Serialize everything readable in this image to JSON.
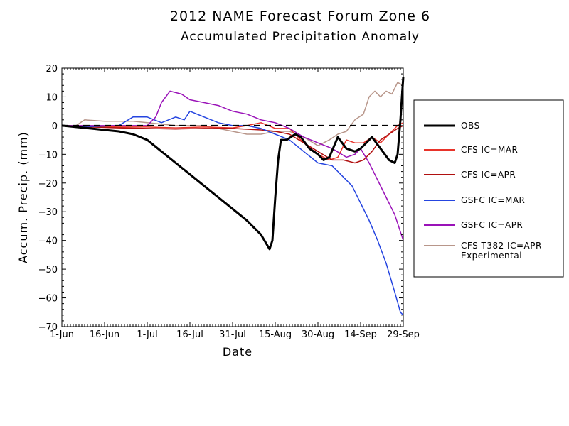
{
  "chart_data": {
    "type": "line",
    "title": "2012 NAME Forecast Forum Zone 6",
    "subtitle": "Accumulated Precipitation Anomaly",
    "xlabel": "Date",
    "ylabel": "Accum. Precip. (mm)",
    "x_domain": [
      "2012-06-01",
      "2012-09-29"
    ],
    "xticks": [
      {
        "date": "2012-06-01",
        "label": "1-Jun"
      },
      {
        "date": "2012-06-16",
        "label": "16-Jun"
      },
      {
        "date": "2012-07-01",
        "label": "1-Jul"
      },
      {
        "date": "2012-07-16",
        "label": "16-Jul"
      },
      {
        "date": "2012-07-31",
        "label": "31-Jul"
      },
      {
        "date": "2012-08-15",
        "label": "15-Aug"
      },
      {
        "date": "2012-08-30",
        "label": "30-Aug"
      },
      {
        "date": "2012-09-14",
        "label": "14-Sep"
      },
      {
        "date": "2012-09-29",
        "label": "29-Sep"
      }
    ],
    "ylim": [
      -70,
      20
    ],
    "yticks": [
      20,
      10,
      0,
      -10,
      -20,
      -30,
      -40,
      -50,
      -60,
      -70
    ],
    "ytick_labels": [
      "20",
      "10",
      "0",
      "−10",
      "−20",
      "−30",
      "−40",
      "−50",
      "−60",
      "−70"
    ],
    "zero_line": "dashed",
    "grid": false,
    "legend_position": "right",
    "series": [
      {
        "name": "OBS",
        "color": "#000000",
        "width": 3,
        "points": [
          [
            "2012-06-01",
            0
          ],
          [
            "2012-06-06",
            -0.5
          ],
          [
            "2012-06-11",
            -1
          ],
          [
            "2012-06-16",
            -1.5
          ],
          [
            "2012-06-21",
            -2
          ],
          [
            "2012-06-26",
            -3
          ],
          [
            "2012-07-01",
            -5
          ],
          [
            "2012-07-06",
            -9
          ],
          [
            "2012-07-11",
            -13
          ],
          [
            "2012-07-16",
            -17
          ],
          [
            "2012-07-21",
            -21
          ],
          [
            "2012-07-26",
            -25
          ],
          [
            "2012-07-31",
            -29
          ],
          [
            "2012-08-05",
            -33
          ],
          [
            "2012-08-10",
            -38
          ],
          [
            "2012-08-13",
            -43
          ],
          [
            "2012-08-14",
            -40
          ],
          [
            "2012-08-15",
            -25
          ],
          [
            "2012-08-16",
            -12
          ],
          [
            "2012-08-17",
            -5
          ],
          [
            "2012-08-19",
            -5
          ],
          [
            "2012-08-22",
            -3
          ],
          [
            "2012-08-24",
            -4
          ],
          [
            "2012-08-27",
            -8
          ],
          [
            "2012-08-30",
            -10
          ],
          [
            "2012-09-01",
            -12
          ],
          [
            "2012-09-03",
            -11
          ],
          [
            "2012-09-06",
            -4
          ],
          [
            "2012-09-09",
            -8
          ],
          [
            "2012-09-12",
            -9
          ],
          [
            "2012-09-14",
            -8
          ],
          [
            "2012-09-16",
            -6
          ],
          [
            "2012-09-18",
            -4
          ],
          [
            "2012-09-21",
            -8
          ],
          [
            "2012-09-24",
            -12
          ],
          [
            "2012-09-26",
            -13
          ],
          [
            "2012-09-27",
            -10
          ],
          [
            "2012-09-28",
            2
          ],
          [
            "2012-09-29",
            17
          ]
        ]
      },
      {
        "name": "CFS IC=MAR",
        "color": "#e8332a",
        "width": 1.5,
        "points": [
          [
            "2012-06-01",
            0
          ],
          [
            "2012-06-11",
            -0.3
          ],
          [
            "2012-06-21",
            -0.5
          ],
          [
            "2012-07-01",
            -0.5
          ],
          [
            "2012-07-11",
            -0.8
          ],
          [
            "2012-07-21",
            -0.5
          ],
          [
            "2012-07-31",
            -0.8
          ],
          [
            "2012-08-05",
            0
          ],
          [
            "2012-08-10",
            1
          ],
          [
            "2012-08-15",
            -1
          ],
          [
            "2012-08-20",
            -1
          ],
          [
            "2012-08-25",
            -6
          ],
          [
            "2012-08-30",
            -10
          ],
          [
            "2012-09-03",
            -12
          ],
          [
            "2012-09-06",
            -11
          ],
          [
            "2012-09-09",
            -5
          ],
          [
            "2012-09-12",
            -6
          ],
          [
            "2012-09-15",
            -6
          ],
          [
            "2012-09-18",
            -4
          ],
          [
            "2012-09-21",
            -6
          ],
          [
            "2012-09-24",
            -3
          ],
          [
            "2012-09-27",
            0
          ],
          [
            "2012-09-29",
            1
          ]
        ]
      },
      {
        "name": "CFS IC=APR",
        "color": "#b01010",
        "width": 1.5,
        "points": [
          [
            "2012-06-01",
            0
          ],
          [
            "2012-06-11",
            -0.5
          ],
          [
            "2012-06-21",
            -0.8
          ],
          [
            "2012-07-01",
            -1
          ],
          [
            "2012-07-11",
            -1.2
          ],
          [
            "2012-07-21",
            -1
          ],
          [
            "2012-07-31",
            -1
          ],
          [
            "2012-08-10",
            -1.5
          ],
          [
            "2012-08-15",
            -2
          ],
          [
            "2012-08-20",
            -3
          ],
          [
            "2012-08-25",
            -6
          ],
          [
            "2012-08-30",
            -9
          ],
          [
            "2012-09-04",
            -12
          ],
          [
            "2012-09-08",
            -12
          ],
          [
            "2012-09-12",
            -13
          ],
          [
            "2012-09-15",
            -12
          ],
          [
            "2012-09-18",
            -9
          ],
          [
            "2012-09-21",
            -5
          ],
          [
            "2012-09-24",
            -3
          ],
          [
            "2012-09-27",
            -1
          ],
          [
            "2012-09-29",
            0
          ]
        ]
      },
      {
        "name": "GSFC IC=MAR",
        "color": "#2545e0",
        "width": 1.5,
        "points": [
          [
            "2012-06-01",
            0
          ],
          [
            "2012-06-11",
            -0.3
          ],
          [
            "2012-06-21",
            0
          ],
          [
            "2012-06-26",
            3
          ],
          [
            "2012-07-01",
            3
          ],
          [
            "2012-07-06",
            1
          ],
          [
            "2012-07-11",
            3
          ],
          [
            "2012-07-14",
            2
          ],
          [
            "2012-07-16",
            5
          ],
          [
            "2012-07-21",
            3
          ],
          [
            "2012-07-26",
            1
          ],
          [
            "2012-07-31",
            0
          ],
          [
            "2012-08-05",
            0
          ],
          [
            "2012-08-10",
            -1
          ],
          [
            "2012-08-15",
            -3
          ],
          [
            "2012-08-20",
            -5
          ],
          [
            "2012-08-25",
            -9
          ],
          [
            "2012-08-30",
            -13
          ],
          [
            "2012-09-04",
            -14
          ],
          [
            "2012-09-09",
            -19
          ],
          [
            "2012-09-11",
            -21
          ],
          [
            "2012-09-14",
            -27
          ],
          [
            "2012-09-17",
            -33
          ],
          [
            "2012-09-20",
            -40
          ],
          [
            "2012-09-23",
            -48
          ],
          [
            "2012-09-26",
            -58
          ],
          [
            "2012-09-28",
            -65
          ],
          [
            "2012-09-29",
            -66
          ]
        ]
      },
      {
        "name": "GSFC IC=APR",
        "color": "#9a12b8",
        "width": 1.5,
        "points": [
          [
            "2012-06-01",
            0
          ],
          [
            "2012-06-11",
            0
          ],
          [
            "2012-06-21",
            0
          ],
          [
            "2012-07-01",
            0
          ],
          [
            "2012-07-04",
            3
          ],
          [
            "2012-07-06",
            8
          ],
          [
            "2012-07-09",
            12
          ],
          [
            "2012-07-13",
            11
          ],
          [
            "2012-07-16",
            9
          ],
          [
            "2012-07-21",
            8
          ],
          [
            "2012-07-26",
            7
          ],
          [
            "2012-07-31",
            5
          ],
          [
            "2012-08-05",
            4
          ],
          [
            "2012-08-10",
            2
          ],
          [
            "2012-08-15",
            1
          ],
          [
            "2012-08-20",
            -1
          ],
          [
            "2012-08-25",
            -4
          ],
          [
            "2012-08-30",
            -6
          ],
          [
            "2012-09-04",
            -8
          ],
          [
            "2012-09-09",
            -11
          ],
          [
            "2012-09-12",
            -10
          ],
          [
            "2012-09-14",
            -8
          ],
          [
            "2012-09-17",
            -13
          ],
          [
            "2012-09-20",
            -19
          ],
          [
            "2012-09-23",
            -25
          ],
          [
            "2012-09-26",
            -31
          ],
          [
            "2012-09-29",
            -40
          ]
        ]
      },
      {
        "name": "CFS T382 IC=APR",
        "name_line2": "Experimental",
        "color": "#b8968a",
        "width": 1.5,
        "points": [
          [
            "2012-06-01",
            0
          ],
          [
            "2012-06-06",
            0
          ],
          [
            "2012-06-09",
            2
          ],
          [
            "2012-06-16",
            1.5
          ],
          [
            "2012-06-26",
            1.5
          ],
          [
            "2012-07-01",
            1
          ],
          [
            "2012-07-11",
            0
          ],
          [
            "2012-07-21",
            0
          ],
          [
            "2012-07-26",
            -1
          ],
          [
            "2012-07-31",
            -2
          ],
          [
            "2012-08-05",
            -3
          ],
          [
            "2012-08-10",
            -3
          ],
          [
            "2012-08-15",
            -2
          ],
          [
            "2012-08-20",
            -2
          ],
          [
            "2012-08-25",
            -4
          ],
          [
            "2012-08-30",
            -7
          ],
          [
            "2012-09-03",
            -5
          ],
          [
            "2012-09-06",
            -3
          ],
          [
            "2012-09-09",
            -2
          ],
          [
            "2012-09-12",
            2
          ],
          [
            "2012-09-15",
            4
          ],
          [
            "2012-09-17",
            10
          ],
          [
            "2012-09-19",
            12
          ],
          [
            "2012-09-21",
            10
          ],
          [
            "2012-09-23",
            12
          ],
          [
            "2012-09-25",
            11
          ],
          [
            "2012-09-27",
            15
          ],
          [
            "2012-09-29",
            14
          ]
        ]
      }
    ]
  }
}
